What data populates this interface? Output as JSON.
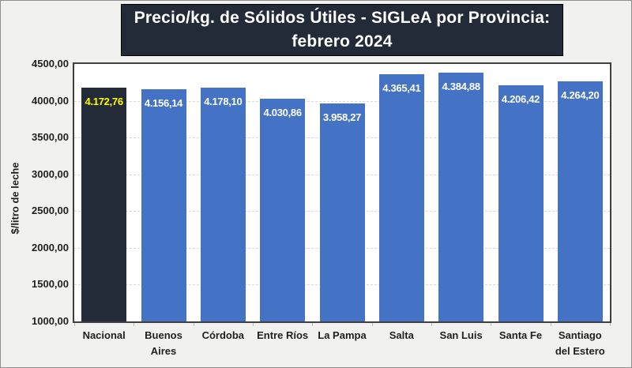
{
  "title": {
    "line1": "Precio/kg. de Sólidos Útiles - SIGLeA por Provincia:",
    "line2": "febrero 2024",
    "background": "#232B38",
    "text_color": "#FFFFFF"
  },
  "chart_data": {
    "type": "bar",
    "title": "Precio/kg. de Sólidos Útiles - SIGLeA por Provincia: febrero 2024",
    "xlabel": "",
    "ylabel": "$/litro de leche",
    "ylim": [
      1000,
      4500
    ],
    "grid": "horizontal dashed every 500",
    "legend": null,
    "categories": [
      "Nacional",
      "Buenos Aires",
      "Córdoba",
      "Entre Ríos",
      "La Pampa",
      "Salta",
      "San Luis",
      "Santa Fe",
      "Santiago del Estero"
    ],
    "values": [
      4172.76,
      4156.14,
      4178.1,
      4030.86,
      3958.27,
      4365.41,
      4384.88,
      4206.42,
      4264.2
    ],
    "value_labels": [
      "4.172,76",
      "4.156,14",
      "4.178,10",
      "4.030,86",
      "3.958,27",
      "4.365,41",
      "4.384,88",
      "4.206,42",
      "4.264,20"
    ],
    "highlight_index": 0,
    "y_ticks": {
      "values": [
        4500,
        4000,
        3500,
        3000,
        2500,
        2000,
        1500,
        1000
      ],
      "labels": [
        "4500,00",
        "4000,00",
        "3500,00",
        "3000,00",
        "2500,00",
        "2000,00",
        "1500,00",
        "1000,00"
      ]
    },
    "colors": {
      "bar": "#4472C4",
      "highlight_bar": "#232B38",
      "value_label": "#FFFFFF",
      "highlight_value_label": "#FFFF00",
      "gridline": "#D9D9D9",
      "axis_text": "#1F1F1F",
      "plot_border": "#3F3F3F"
    }
  }
}
